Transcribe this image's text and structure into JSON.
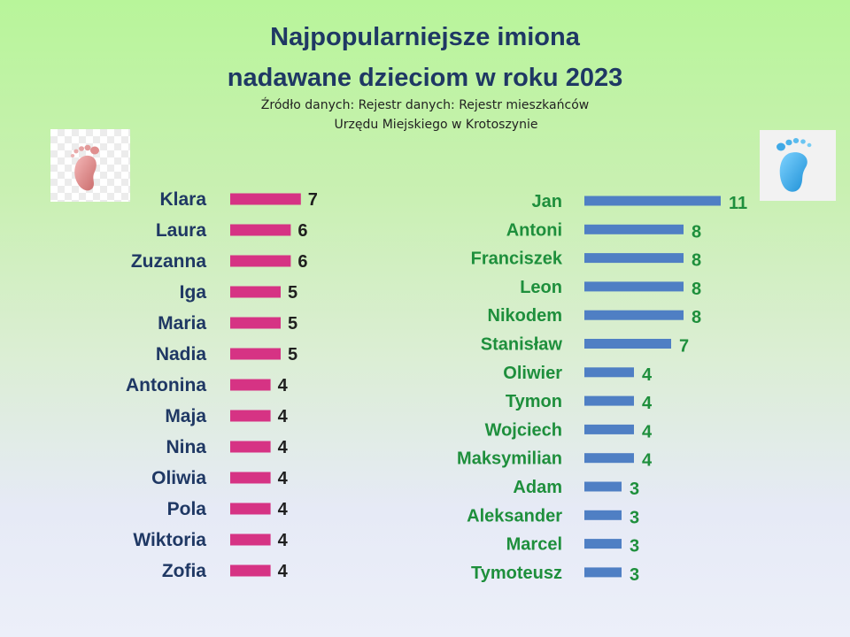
{
  "title_line1": "Najpopularniejsze imiona",
  "title_line2": "nadawane dzieciom w roku 2023",
  "source_line1": "Źródło danych: Rejestr danych: Rejestr mieszkańców",
  "source_line2": "Urzędu Miejskiego w Krotoszynie",
  "icons": {
    "girl": "pink-footprint-icon",
    "boy": "blue-footprint-icon"
  },
  "colors": {
    "girls_bar": "#d63384",
    "boys_bar": "#4f7fc4",
    "title": "#1f3864",
    "boys_text": "#1e8f3c"
  },
  "chart_data": [
    {
      "type": "bar",
      "orientation": "horizontal",
      "categories": [
        "Klara",
        "Laura",
        "Zuzanna",
        "Iga",
        "Maria",
        "Nadia",
        "Antonina",
        "Maja",
        "Nina",
        "Oliwia",
        "Pola",
        "Wiktoria",
        "Zofia"
      ],
      "values": [
        7,
        6,
        6,
        5,
        5,
        5,
        4,
        4,
        4,
        4,
        4,
        4,
        4
      ],
      "data_labels": true,
      "grid": false,
      "legend": "none"
    },
    {
      "type": "bar",
      "orientation": "horizontal",
      "categories": [
        "Jan",
        "Antoni",
        "Franciszek",
        "Leon",
        "Nikodem",
        "Stanisław",
        "Oliwier",
        "Tymon",
        "Wojciech",
        "Maksymilian",
        "Adam",
        "Aleksander",
        "Marcel",
        "Tymoteusz"
      ],
      "values": [
        11,
        8,
        8,
        8,
        8,
        7,
        4,
        4,
        4,
        4,
        3,
        3,
        3,
        3
      ],
      "data_labels": true,
      "grid": false,
      "legend": "none"
    }
  ]
}
